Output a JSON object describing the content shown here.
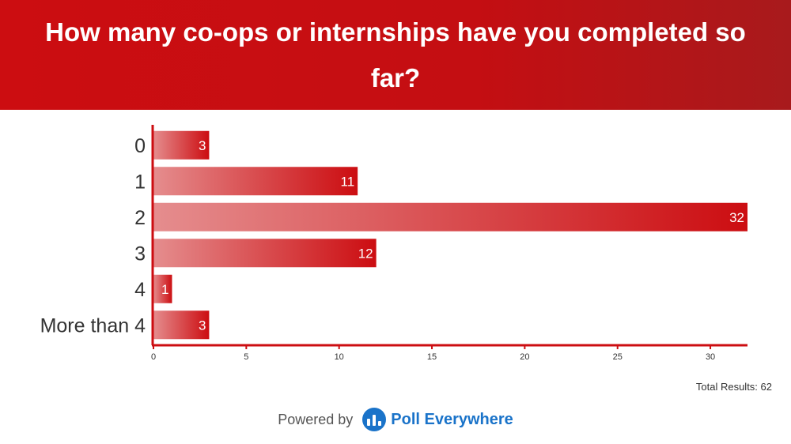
{
  "header": {
    "title": "How many co-ops or internships have you completed so far?"
  },
  "chart_data": {
    "type": "bar",
    "orientation": "horizontal",
    "categories": [
      "0",
      "1",
      "2",
      "3",
      "4",
      "More than 4"
    ],
    "values": [
      3,
      11,
      32,
      12,
      1,
      3
    ],
    "xlim": [
      0,
      32
    ],
    "xticks": [
      0,
      5,
      10,
      15,
      20,
      25,
      30
    ],
    "grid": false,
    "bar_color": "#cc0d11",
    "bar_color_light": "#e58d8e"
  },
  "summary": {
    "total_results": "Total Results: 62"
  },
  "footer": {
    "powered_by": "Powered by",
    "brand": "Poll Everywhere",
    "logo_icon": "poll-everywhere-logo-icon",
    "brand_color": "#1a73c9"
  },
  "colors": {
    "header_red": "#cc0d11",
    "axis_red": "#cc0d11"
  }
}
